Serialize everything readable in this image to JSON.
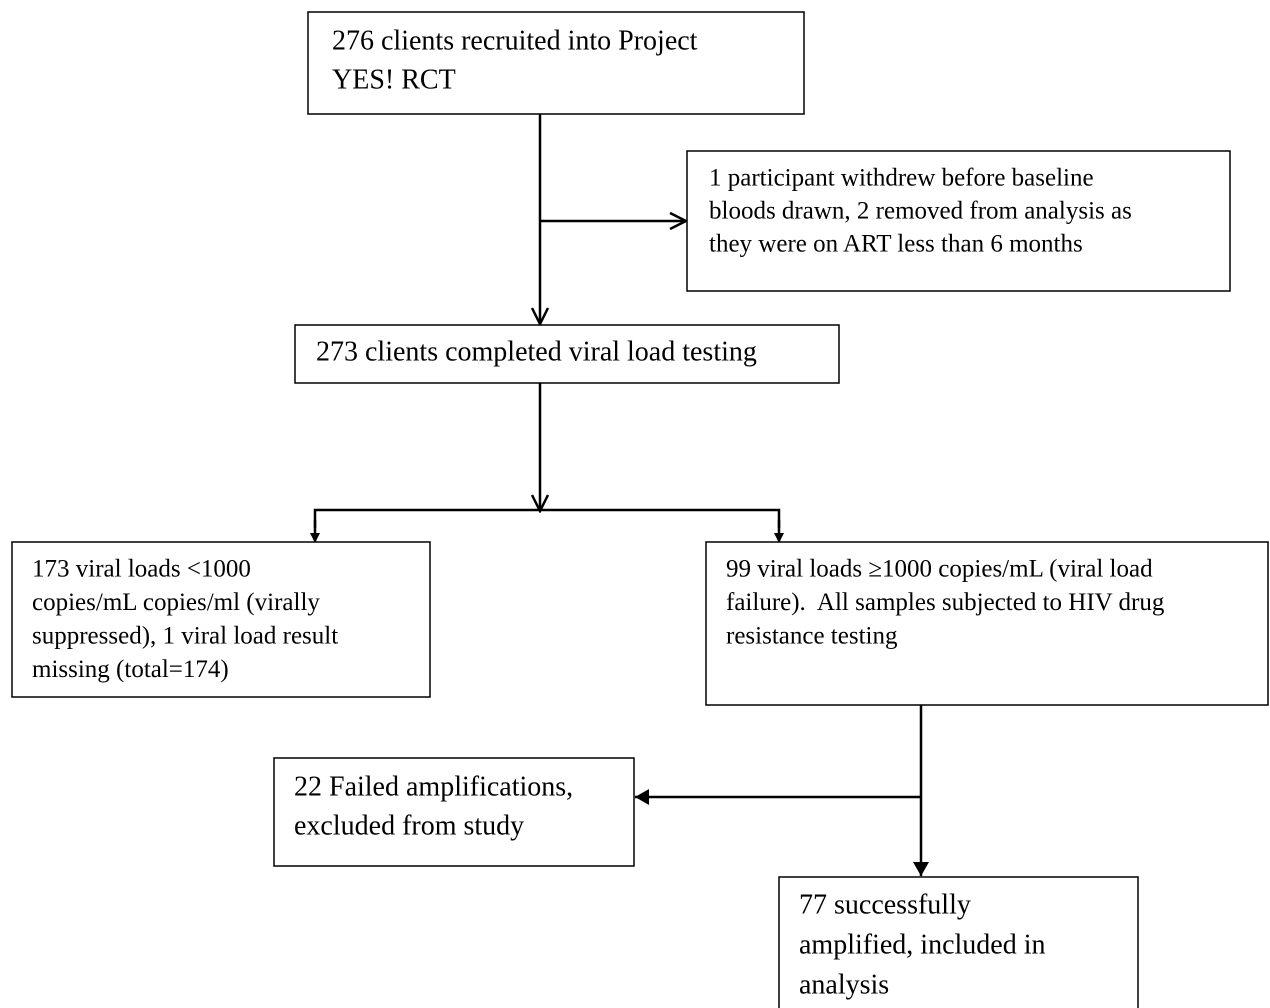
{
  "nodes": [
    {
      "lines": [
        "276 clients recruited into Project",
        "YES! RCT"
      ]
    },
    {
      "lines": [
        "1 participant withdrew before baseline",
        "bloods drawn, 2 removed from analysis as",
        "they were on ART less than 6 months"
      ]
    },
    {
      "lines": [
        "273 clients completed viral load testing"
      ]
    },
    {
      "lines": [
        "173 viral loads <1000",
        "copies/mL copies/ml (virally",
        "suppressed), 1 viral load result",
        "missing (total=174)"
      ]
    },
    {
      "lines": [
        "99 viral loads ≥1000 copies/mL (viral load",
        "failure).  All samples subjected to HIV drug",
        "resistance testing"
      ]
    },
    {
      "lines": [
        "22 Failed amplifications,",
        "excluded from study"
      ]
    },
    {
      "lines": [
        "77 successfully",
        "amplified, included in",
        "analysis"
      ]
    }
  ]
}
